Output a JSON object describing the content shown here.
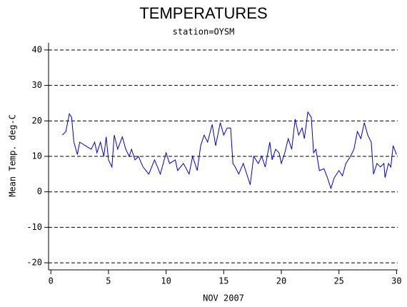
{
  "chart_data": {
    "type": "line",
    "title": "TEMPERATURES",
    "subtitle": "station=OYSM",
    "xlabel": "NOV 2007",
    "ylabel": "Mean Temp. deg-C",
    "xlim": [
      -0.2,
      30.1
    ],
    "ylim": [
      -22,
      42
    ],
    "xticks": [
      0,
      5,
      10,
      15,
      20,
      25,
      30
    ],
    "yticks": [
      -20,
      -10,
      0,
      10,
      20,
      30,
      40
    ],
    "grid": true,
    "color": "#0000cc",
    "x": [
      1,
      1.3,
      1.6,
      1.8,
      2,
      2.3,
      2.5,
      3,
      3.5,
      3.8,
      4,
      4.3,
      4.6,
      4.8,
      5,
      5.3,
      5.5,
      5.8,
      6.2,
      6.5,
      6.8,
      7,
      7.3,
      7.6,
      8,
      8.5,
      9,
      9.5,
      10,
      10.3,
      10.8,
      11,
      11.5,
      12,
      12.3,
      12.7,
      13,
      13.3,
      13.6,
      14,
      14.3,
      14.7,
      15,
      15.3,
      15.6,
      15.8,
      16,
      16.3,
      16.7,
      17,
      17.3,
      17.6,
      18,
      18.3,
      18.6,
      19,
      19.2,
      19.5,
      19.8,
      20,
      20.3,
      20.6,
      20.9,
      21.2,
      21.5,
      21.8,
      22,
      22.3,
      22.6,
      22.8,
      23,
      23.3,
      23.7,
      24,
      24.3,
      24.6,
      25,
      25.3,
      25.6,
      26,
      26.3,
      26.6,
      26.9,
      27.2,
      27.5,
      27.8,
      28,
      28.3,
      28.6,
      28.9,
      29,
      29.3,
      29.5,
      29.7,
      30
    ],
    "values": [
      16,
      17,
      22,
      21,
      14,
      10.5,
      14,
      13,
      12,
      14,
      11,
      14,
      10,
      15.5,
      9,
      7,
      16,
      12,
      15.5,
      12,
      10,
      12,
      9,
      10,
      7,
      5,
      9,
      5,
      11,
      8,
      9,
      6,
      8,
      5,
      10,
      6,
      13,
      16,
      14,
      19,
      13,
      19.5,
      16,
      18,
      18,
      8,
      7,
      5,
      8,
      5,
      2,
      10,
      8,
      10,
      7,
      14,
      9,
      12,
      11,
      8,
      11,
      15,
      12,
      20.5,
      16,
      18,
      15,
      22.5,
      21,
      11,
      12,
      6,
      6.5,
      4,
      1,
      4,
      6,
      4.5,
      8,
      10,
      12,
      17,
      15,
      19.5,
      16,
      14,
      5,
      8,
      7,
      8,
      4,
      8,
      7,
      13,
      10.5
    ]
  }
}
